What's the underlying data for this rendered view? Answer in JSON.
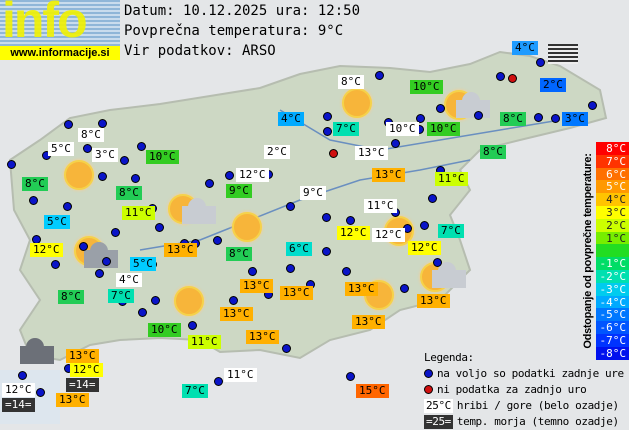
{
  "header": {
    "logo_text": "info",
    "logo_url": "www.informacije.si",
    "date_line": "Datum: 10.12.2025 ura: 12:50",
    "avg_line": "Povprečna temperatura: 9°C",
    "source_line": "Vir podatkov: ARSO"
  },
  "colors": {
    "white": "#ffffff",
    "dark": "#333333",
    "-5": "#0077ff",
    "-4": "#00aaff",
    "-3": "#00ccee",
    "-2": "#00e0b0",
    "-1": "#00dd66",
    "0": "#33cc22",
    "1": "#66dd00",
    "2": "#ccff00",
    "3": "#ffff00",
    "4": "#ffc400",
    "5": "#ffb000",
    "6": "#ff7000",
    "8": "#ff0000"
  },
  "stations": [
    {
      "t": "4°C",
      "bg": "#1e9bff"
    },
    {
      "t": "8°C",
      "bg": "#ffffff"
    },
    {
      "t": "10°C",
      "bg": "#33cc22"
    },
    {
      "t": "2°C",
      "bg": "#0066ff"
    },
    {
      "t": "4°C",
      "bg": "#00aaff"
    },
    {
      "t": "7°C",
      "bg": "#00e0b0"
    },
    {
      "t": "10°C",
      "bg": "#ffffff"
    },
    {
      "t": "10°C",
      "bg": "#33cc22"
    },
    {
      "t": "8°C",
      "bg": "#22cc55"
    },
    {
      "t": "3°C",
      "bg": "#0077ff"
    },
    {
      "t": "8°C",
      "bg": "#ffffff"
    },
    {
      "t": "5°C",
      "bg": "#ffffff"
    },
    {
      "t": "3°C",
      "bg": "#ffffff"
    },
    {
      "t": "10°C",
      "bg": "#33cc22"
    },
    {
      "t": "2°C",
      "bg": "#ffffff"
    },
    {
      "t": "13°C",
      "bg": "#ffffff"
    },
    {
      "t": "8°C",
      "bg": "#22cc55"
    },
    {
      "t": "8°C",
      "bg": "#22cc55"
    },
    {
      "t": "8°C",
      "bg": "#22cc55"
    },
    {
      "t": "12°C",
      "bg": "#ffffff"
    },
    {
      "t": "13°C",
      "bg": "#ffb000"
    },
    {
      "t": "11°C",
      "bg": "#ccff00"
    },
    {
      "t": "9°C",
      "bg": "#33cc22"
    },
    {
      "t": "9°C",
      "bg": "#ffffff"
    },
    {
      "t": "11°C",
      "bg": "#ccff00"
    },
    {
      "t": "11°C",
      "bg": "#ffffff"
    },
    {
      "t": "5°C",
      "bg": "#00ccff"
    },
    {
      "t": "7°C",
      "bg": "#00e0b0"
    },
    {
      "t": "12°C",
      "bg": "#ffff00"
    },
    {
      "t": "12°C",
      "bg": "#ffffff"
    },
    {
      "t": "12°C",
      "bg": "#ffff00"
    },
    {
      "t": "12°C",
      "bg": "#ffff00"
    },
    {
      "t": "13°C",
      "bg": "#ffb000"
    },
    {
      "t": "8°C",
      "bg": "#22cc55"
    },
    {
      "t": "6°C",
      "bg": "#00ddcc"
    },
    {
      "t": "5°C",
      "bg": "#00ccff"
    },
    {
      "t": "4°C",
      "bg": "#ffffff"
    },
    {
      "t": "13°C",
      "bg": "#ffb000"
    },
    {
      "t": "13°C",
      "bg": "#ffb000"
    },
    {
      "t": "13°C",
      "bg": "#ffb000"
    },
    {
      "t": "8°C",
      "bg": "#22cc55"
    },
    {
      "t": "7°C",
      "bg": "#00e0b0"
    },
    {
      "t": "13°C",
      "bg": "#ffb000"
    },
    {
      "t": "13°C",
      "bg": "#ffb000"
    },
    {
      "t": "13°C",
      "bg": "#ffb000"
    },
    {
      "t": "10°C",
      "bg": "#33cc22"
    },
    {
      "t": "11°C",
      "bg": "#ccff00"
    },
    {
      "t": "13°C",
      "bg": "#ffb000"
    },
    {
      "t": "13°C",
      "bg": "#ffb000"
    },
    {
      "t": "12°C",
      "bg": "#ffff00"
    },
    {
      "t": "11°C",
      "bg": "#ffffff"
    },
    {
      "t": "=14=",
      "bg": "#333333"
    },
    {
      "t": "12°C",
      "bg": "#ffffff"
    },
    {
      "t": "13°C",
      "bg": "#ffb000"
    },
    {
      "t": "=14=",
      "bg": "#333333"
    },
    {
      "t": "7°C",
      "bg": "#00e0b0"
    },
    {
      "t": "15°C",
      "bg": "#ff6600"
    }
  ],
  "scale": {
    "title": "Odstopanje od povprečne temperature:",
    "items": [
      {
        "t": "8°C",
        "c": "#ff0000"
      },
      {
        "t": "7°C",
        "c": "#ff3300"
      },
      {
        "t": "6°C",
        "c": "#ff7000"
      },
      {
        "t": "5°C",
        "c": "#ff9900"
      },
      {
        "t": "4°C",
        "c": "#ffc400"
      },
      {
        "t": "3°C",
        "c": "#ffff00"
      },
      {
        "t": "2°C",
        "c": "#ccff00"
      },
      {
        "t": "1°C",
        "c": "#77ee00"
      },
      {
        "t": "",
        "c": "#22dd22"
      },
      {
        "t": "-1°C",
        "c": "#00dd66"
      },
      {
        "t": "-2°C",
        "c": "#00e0b0"
      },
      {
        "t": "-3°C",
        "c": "#00ccee"
      },
      {
        "t": "-4°C",
        "c": "#00aaff"
      },
      {
        "t": "-5°C",
        "c": "#0077ff"
      },
      {
        "t": "-6°C",
        "c": "#0055ff"
      },
      {
        "t": "-7°C",
        "c": "#0033ff"
      },
      {
        "t": "-8°C",
        "c": "#0011ee"
      }
    ]
  },
  "legend": {
    "title": "Legenda:",
    "available": "na voljo so podatki zadnje ure",
    "missing": "ni podatka za zadnjo uro",
    "mountain_sample": "25°C",
    "mountain": "hribi / gore (belo ozadje)",
    "sea_sample": "=25=",
    "sea": "temp. morja (temno ozadje)"
  }
}
